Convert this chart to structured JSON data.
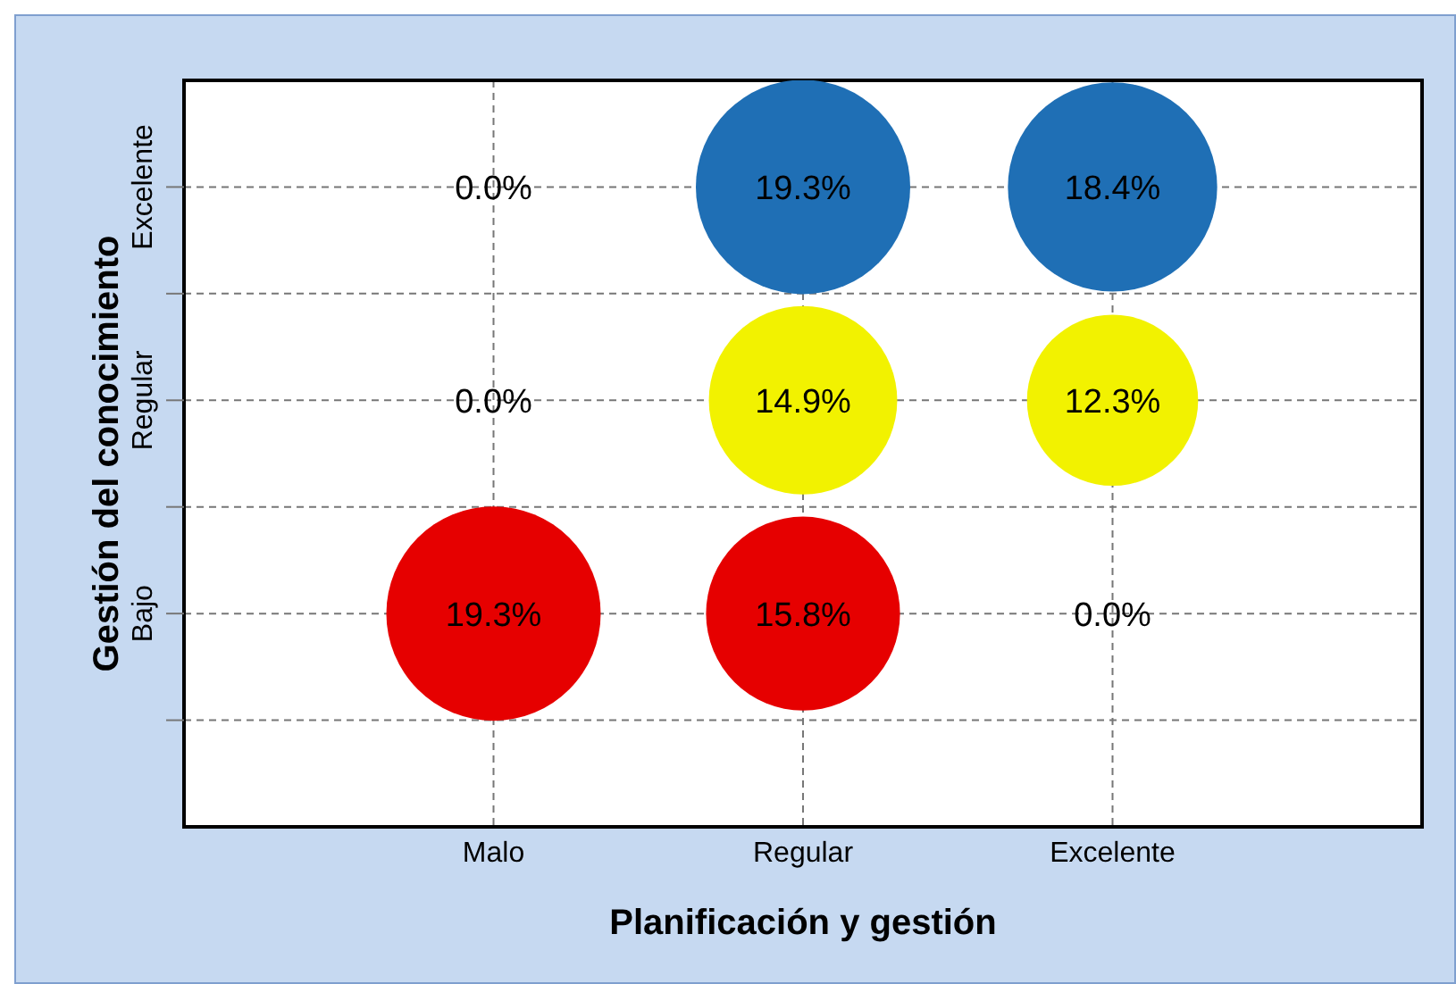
{
  "chart_data": {
    "type": "heatmap",
    "xlabel": "Planificación y gestión",
    "ylabel": "Gestión del conocimiento",
    "categories": [
      "Malo",
      "Regular",
      "Excelente"
    ],
    "y_categories": [
      "Excelente",
      "Regular",
      "Bajo"
    ],
    "grid": true,
    "marker": "circle",
    "colors": [
      "#1f6fb5",
      "#f2f200",
      "#e60000"
    ],
    "cells": [
      [
        0,
        19.3,
        18.4
      ],
      [
        0,
        14.9,
        12.3
      ],
      [
        19.3,
        15.8,
        0
      ]
    ],
    "cell_labels": [
      [
        "0.0%",
        "19.3%",
        "18.4%"
      ],
      [
        "0.0%",
        "14.9%",
        "12.3%"
      ],
      [
        "19.3%",
        "15.8%",
        "0.0%"
      ]
    ]
  }
}
